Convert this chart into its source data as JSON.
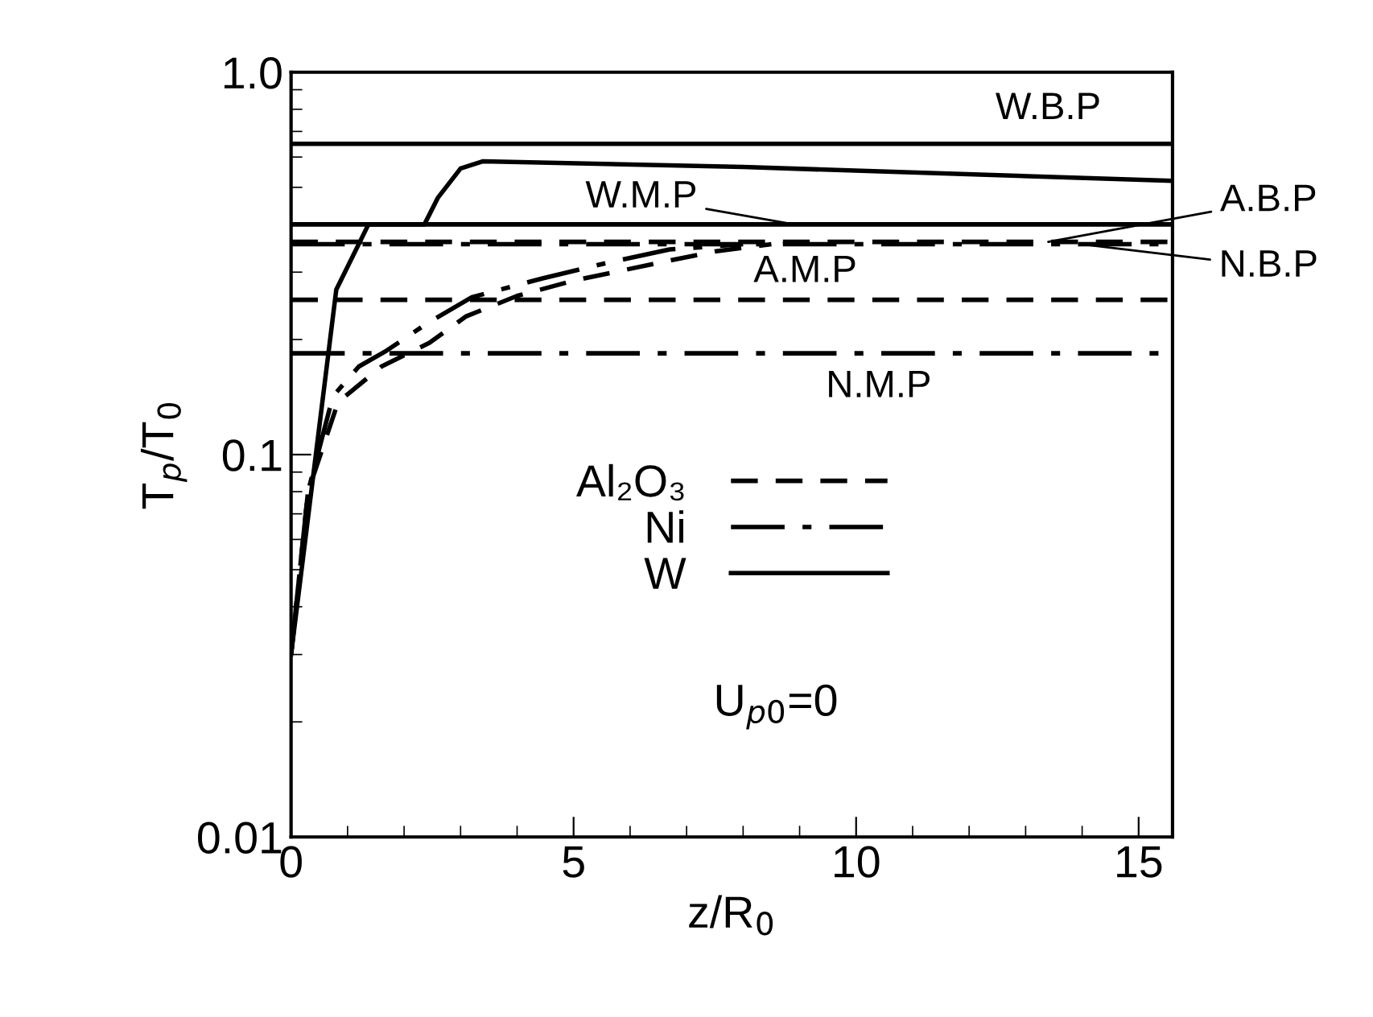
{
  "chart_data": {
    "type": "line",
    "xlabel": "z/R$_{0}$",
    "ylabel": "T$_{p}$/T$_{0}$",
    "xlim": [
      0,
      15.6
    ],
    "xticks": [
      0,
      5,
      10,
      15
    ],
    "ylim": [
      0.01,
      1.0
    ],
    "yticks": [
      {
        "value": 0.01,
        "label": "0.01"
      },
      {
        "value": 0.1,
        "label": "0.1"
      },
      {
        "value": 1.0,
        "label": "1.0"
      }
    ],
    "log": "y",
    "grid": false,
    "legend": "center",
    "marker": "none",
    "series": [
      {
        "name": "Al₂O₃",
        "color": "#000000",
        "line_style": "dashed",
        "x": [
          0,
          0.3,
          0.83,
          1.6,
          2.45,
          3.1,
          4.0,
          5.0,
          6.4,
          7.5,
          8.5
        ],
        "values": [
          0.03,
          0.08,
          0.137,
          0.17,
          0.196,
          0.23,
          0.26,
          0.285,
          0.315,
          0.34,
          0.355
        ]
      },
      {
        "name": "Ni",
        "color": "#000000",
        "line_style": "dashdot",
        "x": [
          0,
          0.3,
          0.74,
          1.2,
          1.69,
          2.4,
          3.2,
          4.45,
          5.5,
          6.7,
          8.0
        ],
        "values": [
          0.03,
          0.08,
          0.142,
          0.17,
          0.187,
          0.22,
          0.258,
          0.289,
          0.315,
          0.344,
          0.355
        ]
      },
      {
        "name": "W",
        "color": "#000000",
        "line_style": "solid",
        "x": [
          0,
          0.4,
          0.8,
          1.37,
          2.36,
          2.6,
          3.0,
          3.4,
          8.0,
          15.6
        ],
        "values": [
          0.03,
          0.09,
          0.27,
          0.4,
          0.4,
          0.47,
          0.56,
          0.585,
          0.565,
          0.52
        ]
      }
    ],
    "ref_lines": [
      {
        "axis": "y",
        "value": 0.65,
        "label": "W.B.P",
        "color": "#000000",
        "line_style": "solid"
      },
      {
        "axis": "y",
        "value": 0.4,
        "label": "W.M.P",
        "color": "#000000",
        "line_style": "solid"
      },
      {
        "axis": "y",
        "value": 0.36,
        "label": "A.B.P",
        "color": "#000000",
        "line_style": "dashed"
      },
      {
        "axis": "y",
        "value": 0.355,
        "label": "N.B.P",
        "color": "#000000",
        "line_style": "dashdot"
      },
      {
        "axis": "y",
        "value": 0.254,
        "label": "A.M.P",
        "color": "#000000",
        "line_style": "dashed"
      },
      {
        "axis": "y",
        "value": 0.184,
        "label": "N.M.P",
        "color": "#000000",
        "line_style": "dashdot"
      }
    ],
    "annotations": [
      "U$_{p0}$=0"
    ]
  }
}
